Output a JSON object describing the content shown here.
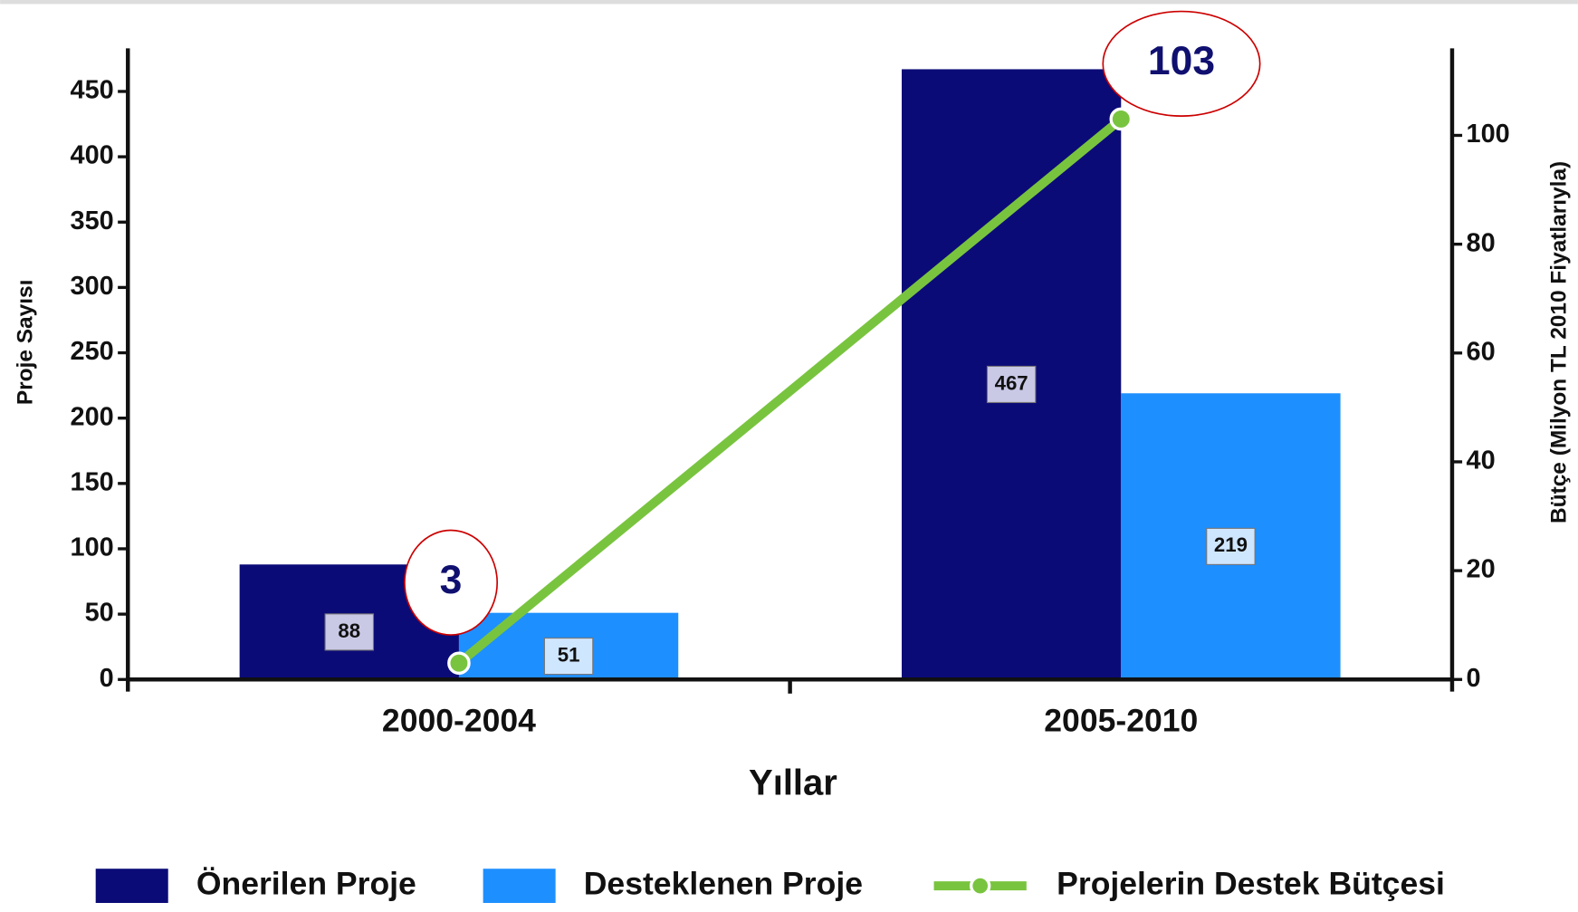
{
  "chart_data": {
    "type": "bar",
    "categories": [
      "2000-2004",
      "2005-2010"
    ],
    "series": [
      {
        "name": "Önerilen Proje",
        "color": "#0b0b78",
        "values": [
          88,
          467
        ]
      },
      {
        "name": "Desteklenen Proje",
        "color": "#1e8fff",
        "values": [
          51,
          219
        ]
      },
      {
        "name": "Projelerin Destek Bütçesi",
        "color": "#79c43f",
        "values": [
          3,
          103
        ],
        "axis": "y2",
        "type": "line"
      }
    ],
    "xlabel": "Yıllar",
    "ylabel": "Proje Sayısı",
    "y2label": "Bütçe (Milyon TL 2010 Fiyatlarıyla)",
    "ylim": [
      0,
      483
    ],
    "yticks": [
      0,
      50,
      100,
      150,
      200,
      250,
      300,
      350,
      400,
      450
    ],
    "y2lim": [
      0,
      116
    ],
    "y2ticks": [
      0,
      20,
      40,
      60,
      80,
      100
    ],
    "legend": "bottom"
  }
}
